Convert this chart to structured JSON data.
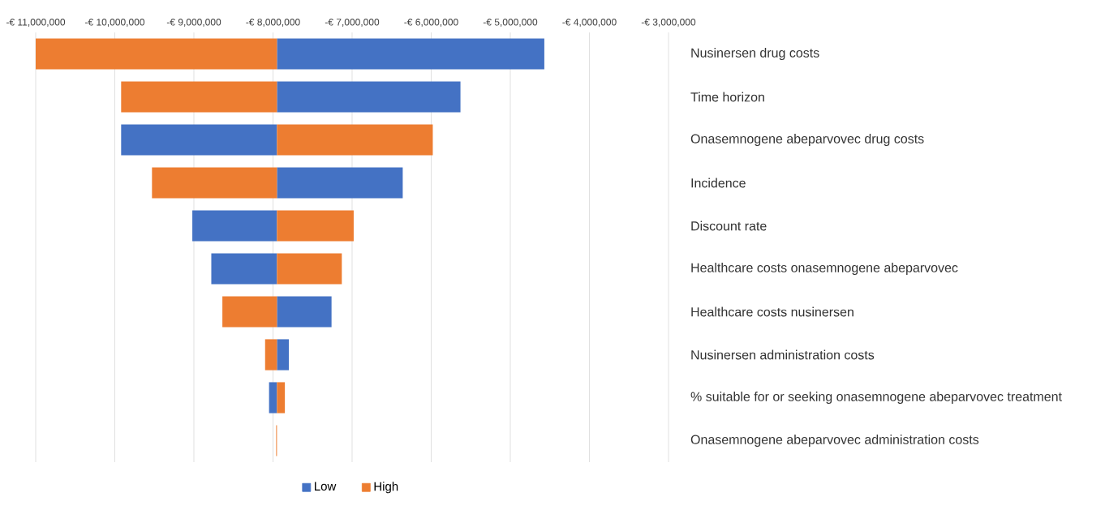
{
  "chart_data": {
    "type": "bar",
    "orientation": "horizontal",
    "categories": [
      "Nusinersen drug costs",
      "Time horizon",
      "Onasemnogene abeparvovec drug costs",
      "Incidence",
      "Discount rate",
      "Healthcare costs onasemnogene abeparvovec",
      "Healthcare costs nusinersen",
      "Nusinersen administration costs",
      "% suitable for or seeking onasemnogene abeparvovec treatment",
      "Onasemnogene abeparvovec administration costs"
    ],
    "series": [
      {
        "name": "Low",
        "color": "#4472c4",
        "base": [
          -7950000,
          -7950000,
          -7950000,
          -7950000,
          -7950000,
          -7950000,
          -7950000,
          -7950000,
          -7950000,
          null
        ],
        "values": [
          3380000,
          2320000,
          -1970000,
          1590000,
          -1070000,
          -830000,
          690000,
          150000,
          -100000,
          null
        ]
      },
      {
        "name": "High",
        "color": "#ed7d31",
        "base": [
          -7950000,
          -7950000,
          -7950000,
          -7950000,
          -7950000,
          -7950000,
          -7950000,
          -7950000,
          -7950000,
          -7950000
        ],
        "values": [
          -3050000,
          -1970000,
          1970000,
          -1580000,
          970000,
          820000,
          -690000,
          -150000,
          100000,
          -10000
        ]
      }
    ],
    "xlim": [
      -11000000,
      -3000000
    ],
    "xticks": [
      {
        "value": -11000000,
        "label": "-€ 11,000,000"
      },
      {
        "value": -10000000,
        "label": "-€ 10,000,000"
      },
      {
        "value": -9000000,
        "label": "-€ 9,000,000"
      },
      {
        "value": -8000000,
        "label": "-€ 8,000,000"
      },
      {
        "value": -7000000,
        "label": "-€ 7,000,000"
      },
      {
        "value": -6000000,
        "label": "-€ 6,000,000"
      },
      {
        "value": -5000000,
        "label": "-€ 5,000,000"
      },
      {
        "value": -4000000,
        "label": "-€ 4,000,000"
      },
      {
        "value": -3000000,
        "label": "-€ 3,000,000"
      }
    ],
    "grid": "x",
    "legend": "bottom"
  }
}
